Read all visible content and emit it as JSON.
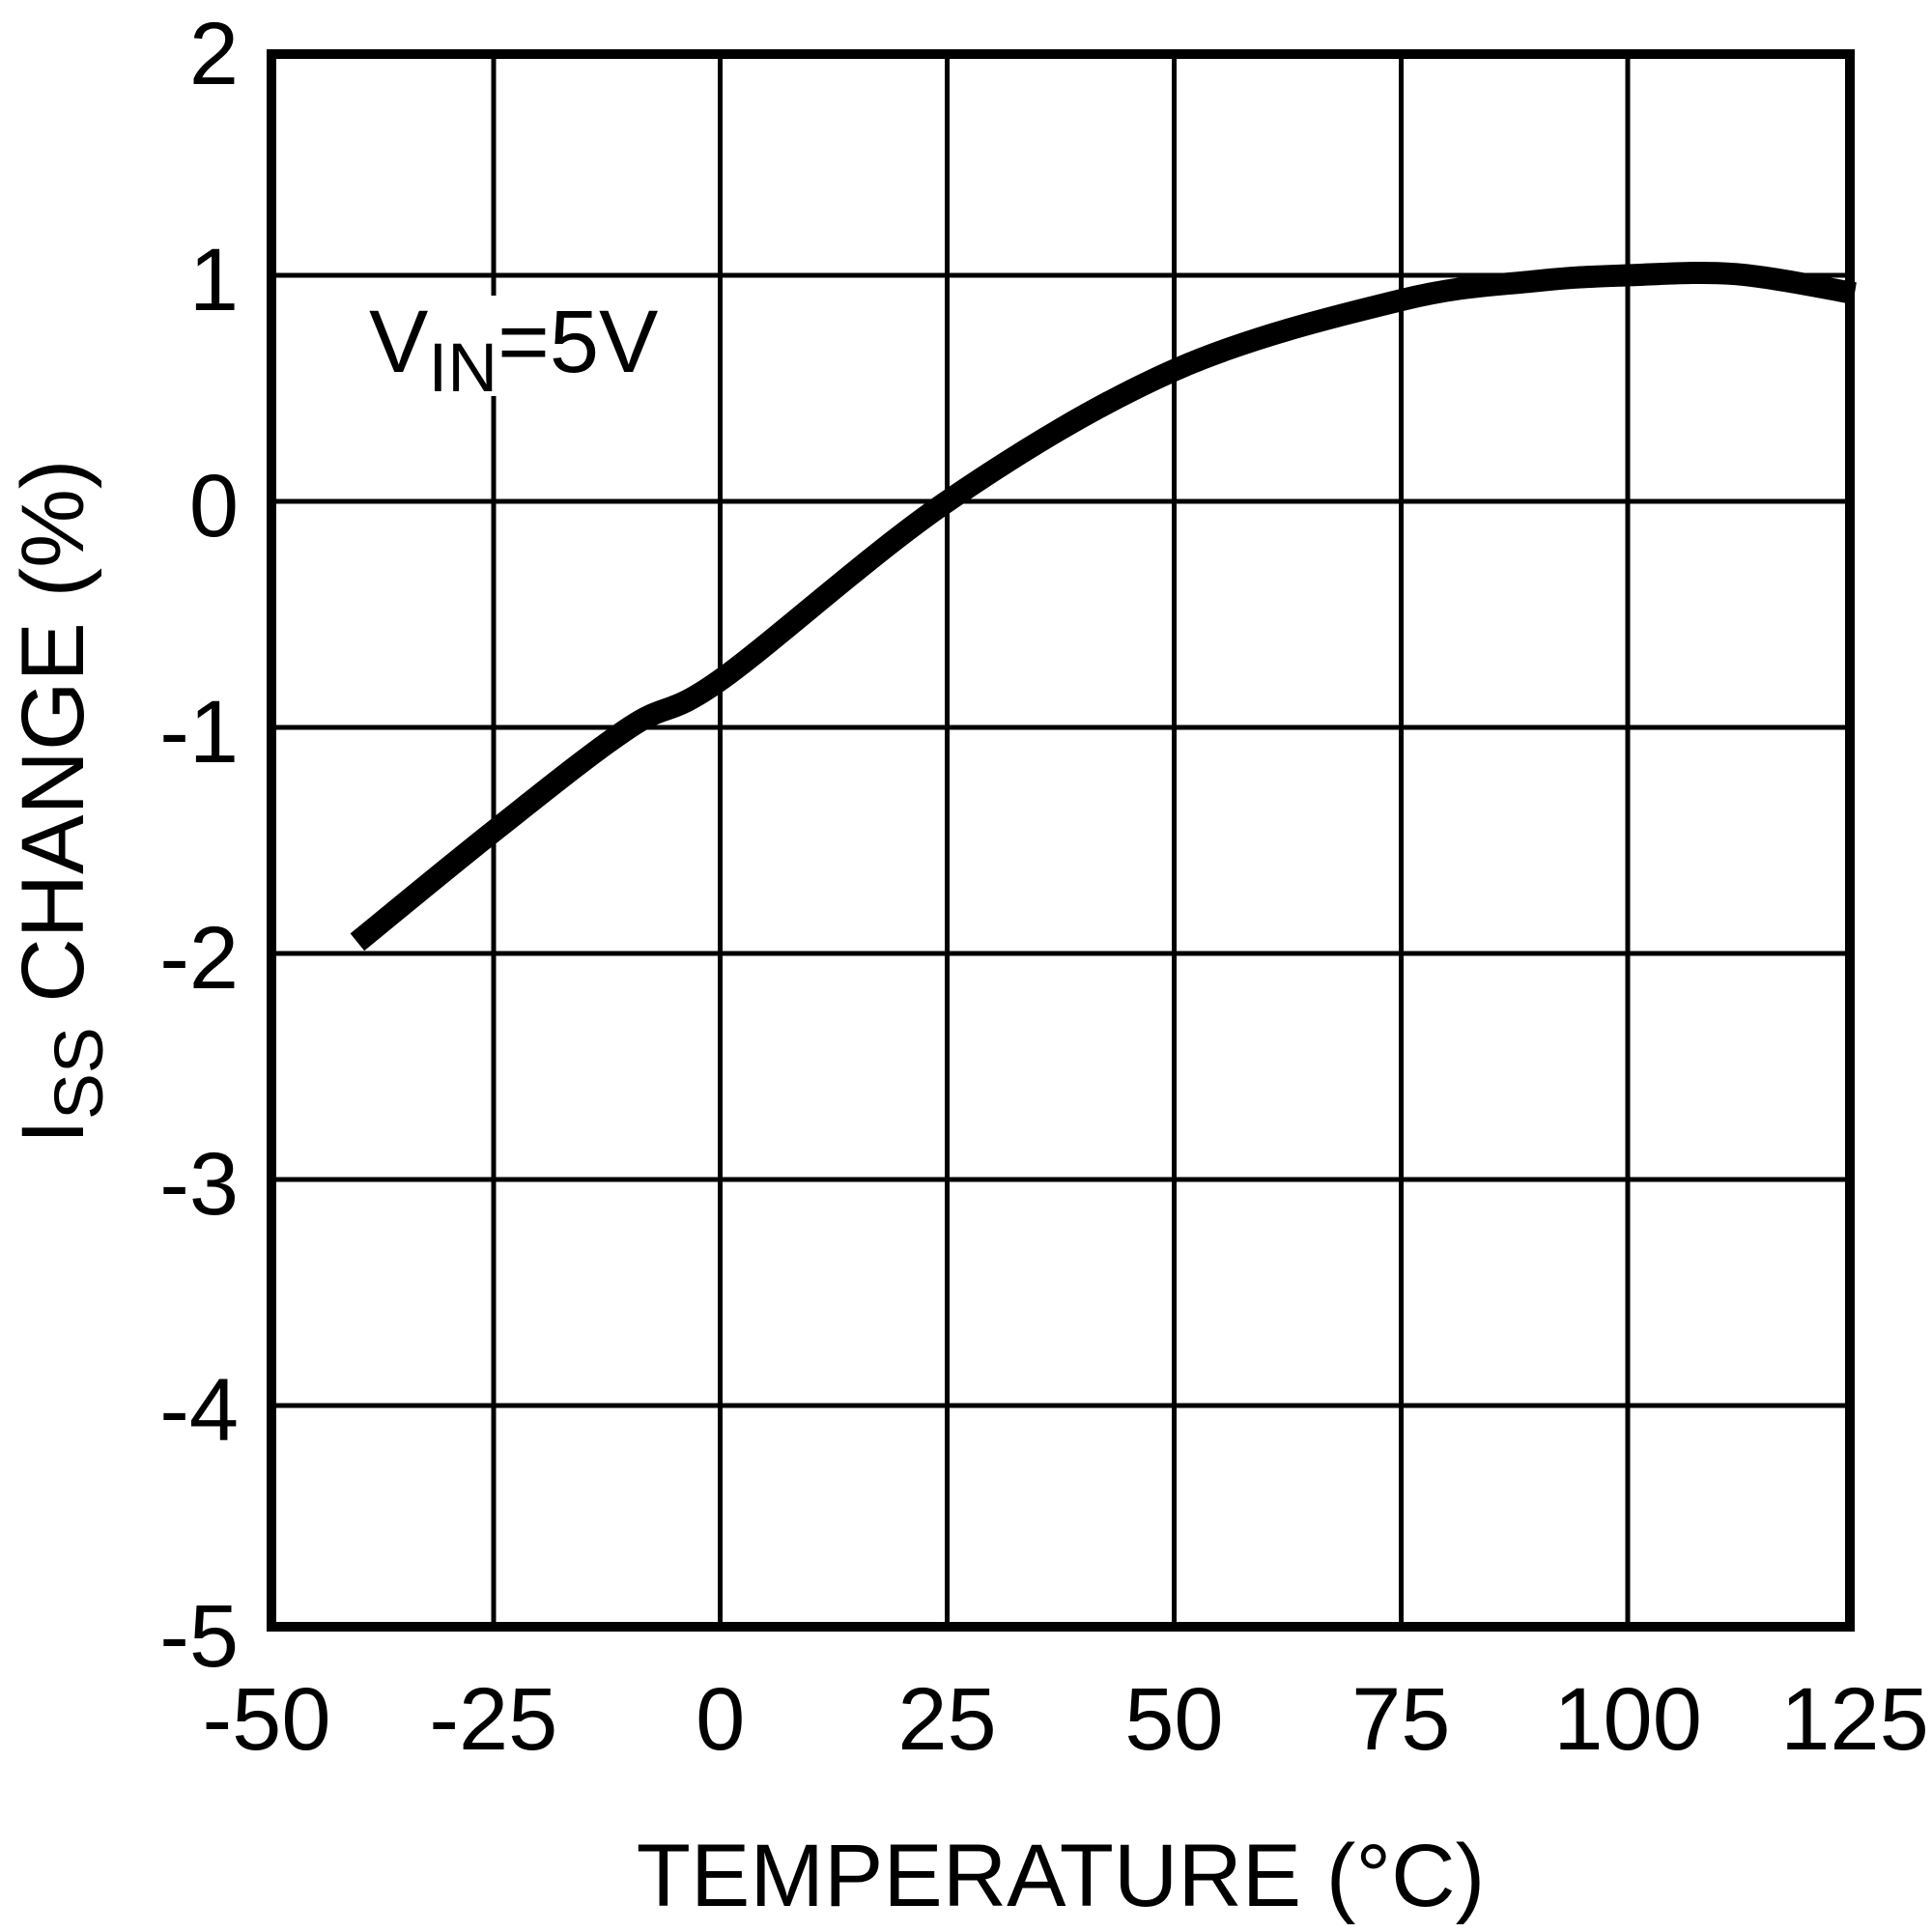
{
  "figure": {
    "background": "#ffffff",
    "foreground": "#000000"
  },
  "chart_data": {
    "type": "line",
    "title": "",
    "xlabel": "TEMPERATURE (°C)",
    "ylabel": "ISS CHANGE (%)",
    "ylabel_parts": {
      "main": "I",
      "sub": "SS",
      "rest": " CHANGE (%)"
    },
    "annotation": {
      "main": "V",
      "sub": "IN",
      "rest": "=5V"
    },
    "xlim": [
      -50,
      125
    ],
    "ylim": [
      -5,
      2
    ],
    "x_ticks": [
      -50,
      -25,
      0,
      25,
      50,
      75,
      100,
      125
    ],
    "x_tick_labels": [
      "-50",
      "-25",
      "0",
      "25",
      "50",
      "75",
      "100",
      "125"
    ],
    "y_ticks": [
      2,
      1,
      0,
      -1,
      -2,
      -3,
      -4,
      -5
    ],
    "y_tick_labels": [
      "2",
      "1",
      "0",
      "-1",
      "-2",
      "-3",
      "-4",
      "-5"
    ],
    "grid": true,
    "legend": "none",
    "line_color": "#000000",
    "series": [
      {
        "name": "ISS change vs temperature, VIN=5V",
        "points": [
          [
            -40,
            -1.95
          ],
          [
            -25,
            -1.46
          ],
          [
            -10,
            -1.0
          ],
          [
            0,
            -0.79
          ],
          [
            25,
            0.0
          ],
          [
            50,
            0.58
          ],
          [
            75,
            0.89
          ],
          [
            90,
            0.975
          ],
          [
            100,
            1.0
          ],
          [
            112,
            1.005
          ],
          [
            125,
            0.92
          ]
        ]
      }
    ]
  }
}
